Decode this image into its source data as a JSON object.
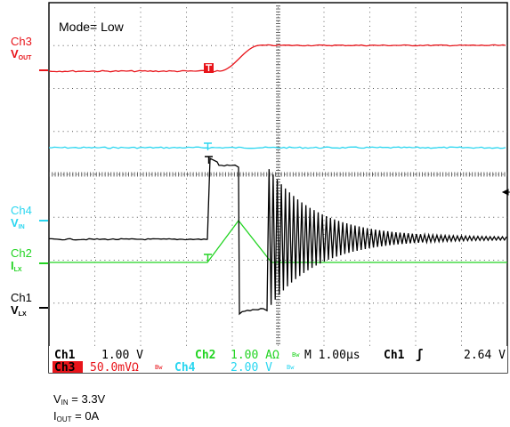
{
  "chart_data": {
    "type": "line",
    "title": "Mode= Low",
    "grid": true,
    "x_divisions": 10,
    "y_divisions": 8,
    "time_per_div": "1.00µs",
    "series": [
      {
        "name": "Ch3 VOUT",
        "channel": "Ch3",
        "scale": "50.0mV",
        "color": "#e8141a",
        "trace": "Flat level, then ramps up by about 0.5 div between 2.5 and 3.3 div after the start of the sweep, then flat"
      },
      {
        "name": "Ch4 VIN",
        "channel": "Ch4",
        "scale": "2.00 V",
        "color": "#2ad6f0",
        "trace": "Flat DC level"
      },
      {
        "name": "Ch2 ILX",
        "channel": "Ch2",
        "scale": "1.00 A",
        "color": "#22d422",
        "trace": "Flat at zero, triangular pulse of about 1 div peak, then flat"
      },
      {
        "name": "Ch1 VLX",
        "channel": "Ch1",
        "scale": "1.00 V",
        "color": "#000000",
        "trace": "Low level, high pulse about 3.6 div, drops about 6.5 div, then decaying ringing"
      }
    ]
  },
  "plot_title": "Mode= Low",
  "channels": {
    "ch3": {
      "name": "Ch3",
      "signal": "V",
      "sub": "OUT",
      "color": "#e8141a"
    },
    "ch4": {
      "name": "Ch4",
      "signal": "V",
      "sub": "IN",
      "color": "#2ad6f0"
    },
    "ch2": {
      "name": "Ch2",
      "signal": "I",
      "sub": "LX",
      "color": "#22d422"
    },
    "ch1": {
      "name": "Ch1",
      "signal": "V",
      "sub": "LX",
      "color": "#000000"
    }
  },
  "status": {
    "row1": {
      "ch1": "Ch1",
      "ch1_scale": "1.00 V",
      "ch2": "Ch2",
      "ch2_scale": "1.00 AΩ",
      "timebase": "M 1.00µs",
      "trigger_src": "Ch1",
      "trigger_symbol": "ʃ",
      "trigger_level": "2.64 V"
    },
    "row2": {
      "ch3": "Ch3",
      "ch3_scale": "50.0mVΩ",
      "ch4": "Ch4",
      "ch4_scale": "2.00 V"
    },
    "bw_mark": "Bw"
  },
  "notes": {
    "vin": {
      "label": "V",
      "sub": "IN",
      "value": " = 3.3V"
    },
    "iout": {
      "label": "I",
      "sub": "OUT",
      "value": " = 0A"
    }
  }
}
